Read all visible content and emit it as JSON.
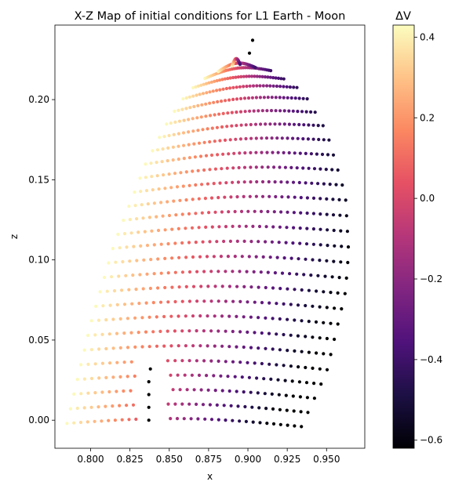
{
  "chart_data": {
    "type": "scatter",
    "title": "X-Z Map of initial conditions for L1 Earth - Moon",
    "xlabel": "x",
    "ylabel": "z",
    "xlim": [
      0.7773,
      0.9743
    ],
    "ylim": [
      -0.0175,
      0.2465
    ],
    "xticks": [
      "0.800",
      "0.825",
      "0.850",
      "0.875",
      "0.900",
      "0.925",
      "0.950"
    ],
    "yticks": [
      "0.00",
      "0.05",
      "0.10",
      "0.15",
      "0.20"
    ],
    "grid": false,
    "colorbar": {
      "label": "ΔV",
      "colormap": "magma",
      "range": [
        -0.62,
        0.43
      ],
      "ticks": [
        "−0.6",
        "−0.4",
        "−0.2",
        "0.0",
        "0.2",
        "0.4"
      ]
    },
    "series": [
      {
        "shape": "fan of arcs sweeping from the inner edge near x 0.785 to the outer edge near x 0.964",
        "inner_edge": [
          [
            0.785,
            -0.002
          ],
          [
            0.8,
            0.06
          ],
          [
            0.815,
            0.11
          ],
          [
            0.835,
            0.16
          ],
          [
            0.85,
            0.188
          ],
          [
            0.862,
            0.205
          ],
          [
            0.875,
            0.215
          ],
          [
            0.89,
            0.221
          ]
        ],
        "outer_edge": [
          [
            0.934,
            -0.004
          ],
          [
            0.95,
            0.03
          ],
          [
            0.962,
            0.08
          ],
          [
            0.964,
            0.105
          ],
          [
            0.962,
            0.14
          ],
          [
            0.95,
            0.18
          ],
          [
            0.935,
            0.205
          ],
          [
            0.915,
            0.218
          ],
          [
            0.895,
            0.222
          ]
        ],
        "bottom_edge": [
          [
            0.785,
            -0.002
          ],
          [
            0.829,
            -0.004
          ],
          [
            0.85,
            -0.004
          ],
          [
            0.9,
            -0.004
          ],
          [
            0.934,
            -0.004
          ]
        ],
        "gap_x": [
          0.829,
          0.848
        ],
        "dv_range": [
          -0.61,
          0.42
        ]
      },
      {
        "name": "",
        "color": "#000000",
        "points": [
          [
            0.837,
            0.0
          ],
          [
            0.837,
            0.008
          ],
          [
            0.837,
            0.016
          ],
          [
            0.837,
            0.024
          ],
          [
            0.838,
            0.032
          ]
        ]
      },
      {
        "name": "",
        "color": "#000000",
        "points": [
          [
            0.901,
            0.229
          ],
          [
            0.903,
            0.237
          ]
        ]
      }
    ]
  }
}
